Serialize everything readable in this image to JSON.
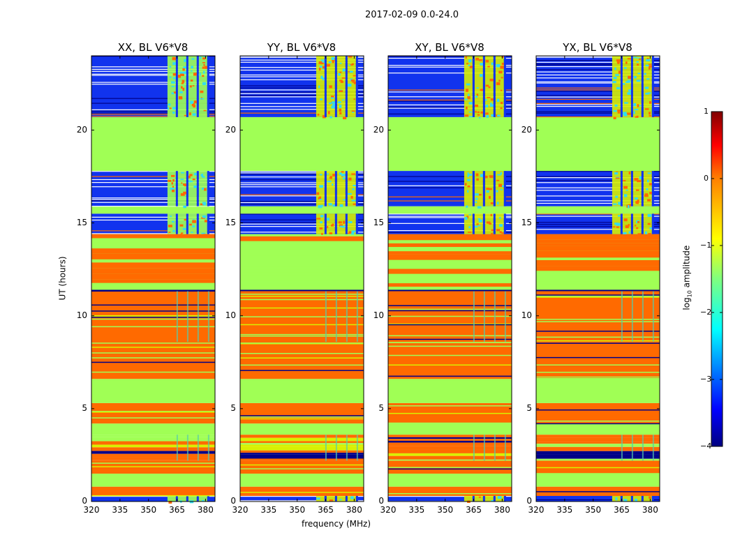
{
  "suptitle": "2017-02-09 0.0-24.0",
  "colors": {
    "orange": "#ff6a00",
    "green": "#a0ff55",
    "blue": "#1133ee",
    "navy": "#000088",
    "yellow": "#d8f000",
    "cyan": "#33ddee",
    "teal": "#55ccaa"
  },
  "chart_data": {
    "type": "heatmap",
    "panels": [
      {
        "title": "XX, BL V6*V8"
      },
      {
        "title": "YY, BL V6*V8"
      },
      {
        "title": "XY, BL V6*V8"
      },
      {
        "title": "YX, BL V6*V8"
      }
    ],
    "xlabel": "frequency (MHz)",
    "ylabel": "UT (hours)",
    "xlim": [
      320,
      385
    ],
    "ylim": [
      0,
      24
    ],
    "xticks": [
      "320",
      "335",
      "350",
      "365",
      "380"
    ],
    "yticks": [
      "0",
      "5",
      "10",
      "15",
      "20"
    ],
    "colorbar": {
      "label": "log10 amplitude",
      "label_main": "log",
      "label_sub": "10",
      "label_rest": " amplitude",
      "range": [
        -4,
        1
      ],
      "ticks": [
        "1",
        "0",
        "−1",
        "−2",
        "−3",
        "−4"
      ],
      "colormap": "jet"
    },
    "rfi_band_mhz": [
      360,
      382
    ],
    "bands": [
      {
        "from": 0.0,
        "to": 0.3,
        "kind": "noise"
      },
      {
        "from": 0.3,
        "to": 0.8,
        "kind": "orange"
      },
      {
        "from": 0.8,
        "to": 1.5,
        "kind": "green"
      },
      {
        "from": 1.5,
        "to": 2.2,
        "kind": "orange"
      },
      {
        "from": 2.2,
        "to": 3.6,
        "kind": "mixed"
      },
      {
        "from": 3.6,
        "to": 4.2,
        "kind": "green"
      },
      {
        "from": 4.2,
        "to": 5.3,
        "kind": "orange"
      },
      {
        "from": 5.3,
        "to": 6.6,
        "kind": "green"
      },
      {
        "from": 6.6,
        "to": 8.6,
        "kind": "orange"
      },
      {
        "from": 8.6,
        "to": 11.4,
        "kind": "orange"
      },
      {
        "from": 11.4,
        "to": 14.4,
        "kind": "greenish"
      },
      {
        "from": 14.4,
        "to": 15.5,
        "kind": "noise"
      },
      {
        "from": 15.5,
        "to": 15.9,
        "kind": "green"
      },
      {
        "from": 15.9,
        "to": 17.8,
        "kind": "noise"
      },
      {
        "from": 17.8,
        "to": 20.7,
        "kind": "green"
      },
      {
        "from": 20.7,
        "to": 24.0,
        "kind": "noise"
      }
    ]
  }
}
